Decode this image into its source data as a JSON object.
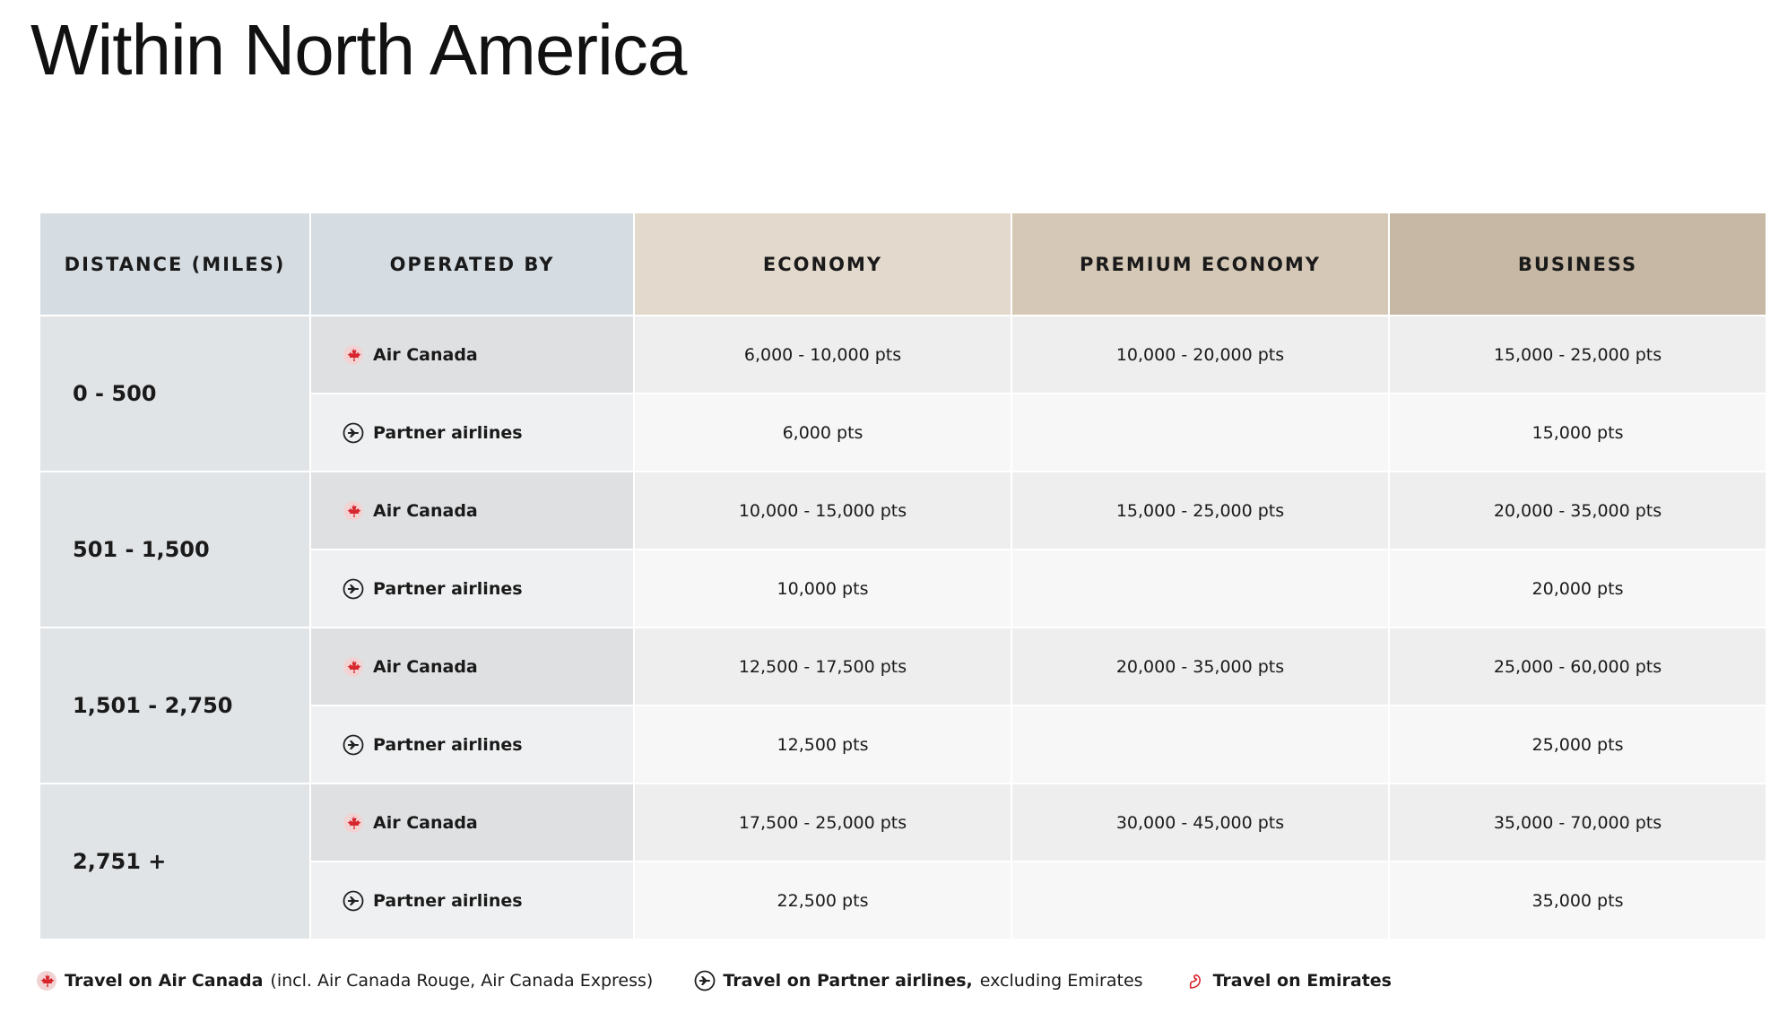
{
  "title": "Within North America",
  "table": {
    "headers": [
      "DISTANCE (MILES)",
      "OPERATED BY",
      "ECONOMY",
      "PREMIUM ECONOMY",
      "BUSINESS"
    ],
    "groups": [
      {
        "distance": "0 - 500",
        "rows": [
          {
            "operator": "Air Canada",
            "economy": "6,000 - 10,000 pts",
            "premium_economy": "10,000 - 20,000 pts",
            "business": "15,000 - 25,000 pts"
          },
          {
            "operator": "Partner airlines",
            "economy": "6,000 pts",
            "business": "15,000 pts"
          }
        ]
      },
      {
        "distance": "501 - 1,500",
        "rows": [
          {
            "operator": "Air Canada",
            "economy": "10,000 - 15,000 pts",
            "premium_economy": "15,000 - 25,000 pts",
            "business": "20,000 - 35,000 pts"
          },
          {
            "operator": "Partner airlines",
            "economy": "10,000 pts",
            "business": "20,000 pts"
          }
        ]
      },
      {
        "distance": "1,501 - 2,750",
        "rows": [
          {
            "operator": "Air Canada",
            "economy": "12,500 - 17,500 pts",
            "premium_economy": "20,000 - 35,000 pts",
            "business": "25,000 - 60,000 pts"
          },
          {
            "operator": "Partner airlines",
            "economy": "12,500 pts",
            "business": "25,000 pts"
          }
        ]
      },
      {
        "distance": "2,751 +",
        "rows": [
          {
            "operator": "Air Canada",
            "economy": "17,500 - 25,000 pts",
            "premium_economy": "30,000 - 45,000 pts",
            "business": "35,000 - 70,000 pts"
          },
          {
            "operator": "Partner airlines",
            "economy": "22,500 pts",
            "business": "35,000 pts"
          }
        ]
      }
    ]
  },
  "legend": [
    {
      "bold": "Travel on Air Canada",
      "text": "(incl. Air Canada Rouge, Air Canada Express)"
    },
    {
      "bold": "Travel on Partner airlines,",
      "text": "excluding Emirates"
    },
    {
      "bold": "Travel on Emirates"
    }
  ]
}
